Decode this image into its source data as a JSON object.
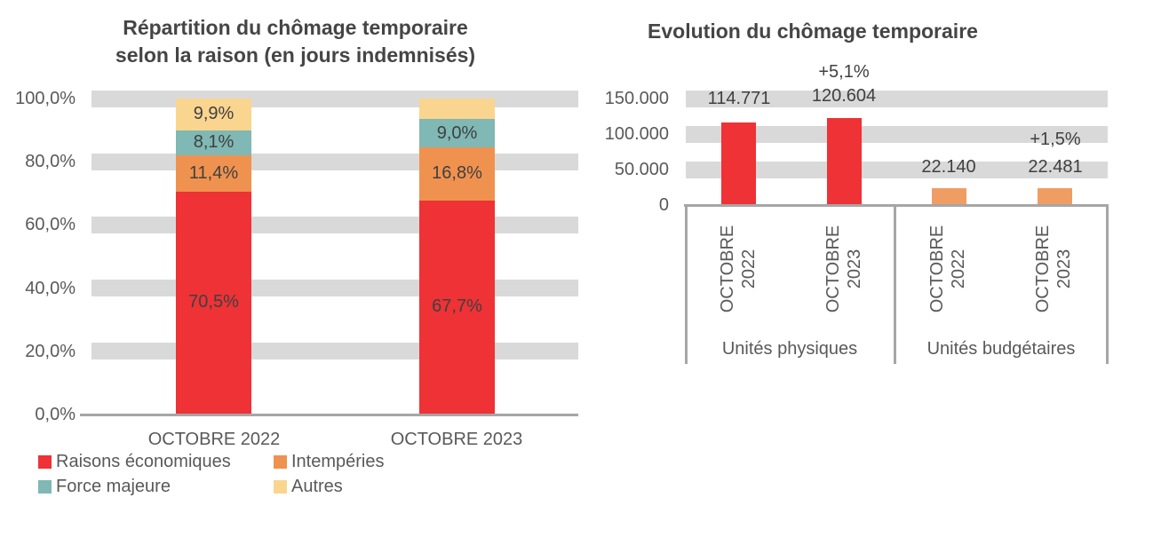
{
  "chart_data": [
    {
      "type": "bar",
      "stacked": true,
      "title_line1": "Répartition du chômage temporaire",
      "title_line2": "selon la raison (en jours indemnisés)",
      "categories": [
        "OCTOBRE 2022",
        "OCTOBRE 2023"
      ],
      "series": [
        {
          "name": "Raisons économiques",
          "color": "#EE3236",
          "values": [
            70.5,
            67.7
          ],
          "labels": [
            "70,5%",
            "67,7%"
          ]
        },
        {
          "name": "Intempéries",
          "color": "#F0924F",
          "values": [
            11.4,
            16.8
          ],
          "labels": [
            "11,4%",
            "16,8%"
          ]
        },
        {
          "name": "Force majeure",
          "color": "#7FB8B4",
          "values": [
            8.1,
            9.0
          ],
          "labels": [
            "8,1%",
            "9,0%"
          ]
        },
        {
          "name": "Autres",
          "color": "#FAD58F",
          "values": [
            9.9,
            6.5
          ],
          "labels": [
            "9,9%",
            ""
          ]
        }
      ],
      "y_axis": {
        "ticks": [
          "100,0%",
          "80,0%",
          "60,0%",
          "40,0%",
          "20,0%",
          "0,0%"
        ],
        "min": 0,
        "max": 100,
        "unit": "%"
      },
      "grid": "horizontal-bands",
      "legend_position": "bottom"
    },
    {
      "type": "bar",
      "stacked": false,
      "title": "Evolution du chômage temporaire",
      "groups": [
        {
          "label": "Unités physiques"
        },
        {
          "label": "Unités budgétaires"
        }
      ],
      "bars": [
        {
          "cat_line1": "OCTOBRE",
          "cat_line2": "2022",
          "group": "Unités physiques",
          "value": 114771,
          "label": "114.771",
          "change": "",
          "color": "#EE3236"
        },
        {
          "cat_line1": "OCTOBRE",
          "cat_line2": "2023",
          "group": "Unités physiques",
          "value": 120604,
          "label": "120.604",
          "change": "+5,1%",
          "color": "#EE3236"
        },
        {
          "cat_line1": "OCTOBRE",
          "cat_line2": "2022",
          "group": "Unités budgétaires",
          "value": 22140,
          "label": "22.140",
          "change": "",
          "color": "#F09D63"
        },
        {
          "cat_line1": "OCTOBRE",
          "cat_line2": "2023",
          "group": "Unités budgétaires",
          "value": 22481,
          "label": "22.481",
          "change": "+1,5%",
          "color": "#F09D63"
        }
      ],
      "y_axis": {
        "ticks": [
          "150.000",
          "100.000",
          "50.000",
          "0"
        ],
        "min": 0,
        "max": 150000
      },
      "grid": "horizontal-bands"
    }
  ],
  "colors": {
    "grid_band": "#D9D9D9",
    "axis_line": "#A6A6A6",
    "axis_text": "#595959",
    "data_label_text": "#404040",
    "title_text": "#454545",
    "background": "#ffffff"
  }
}
